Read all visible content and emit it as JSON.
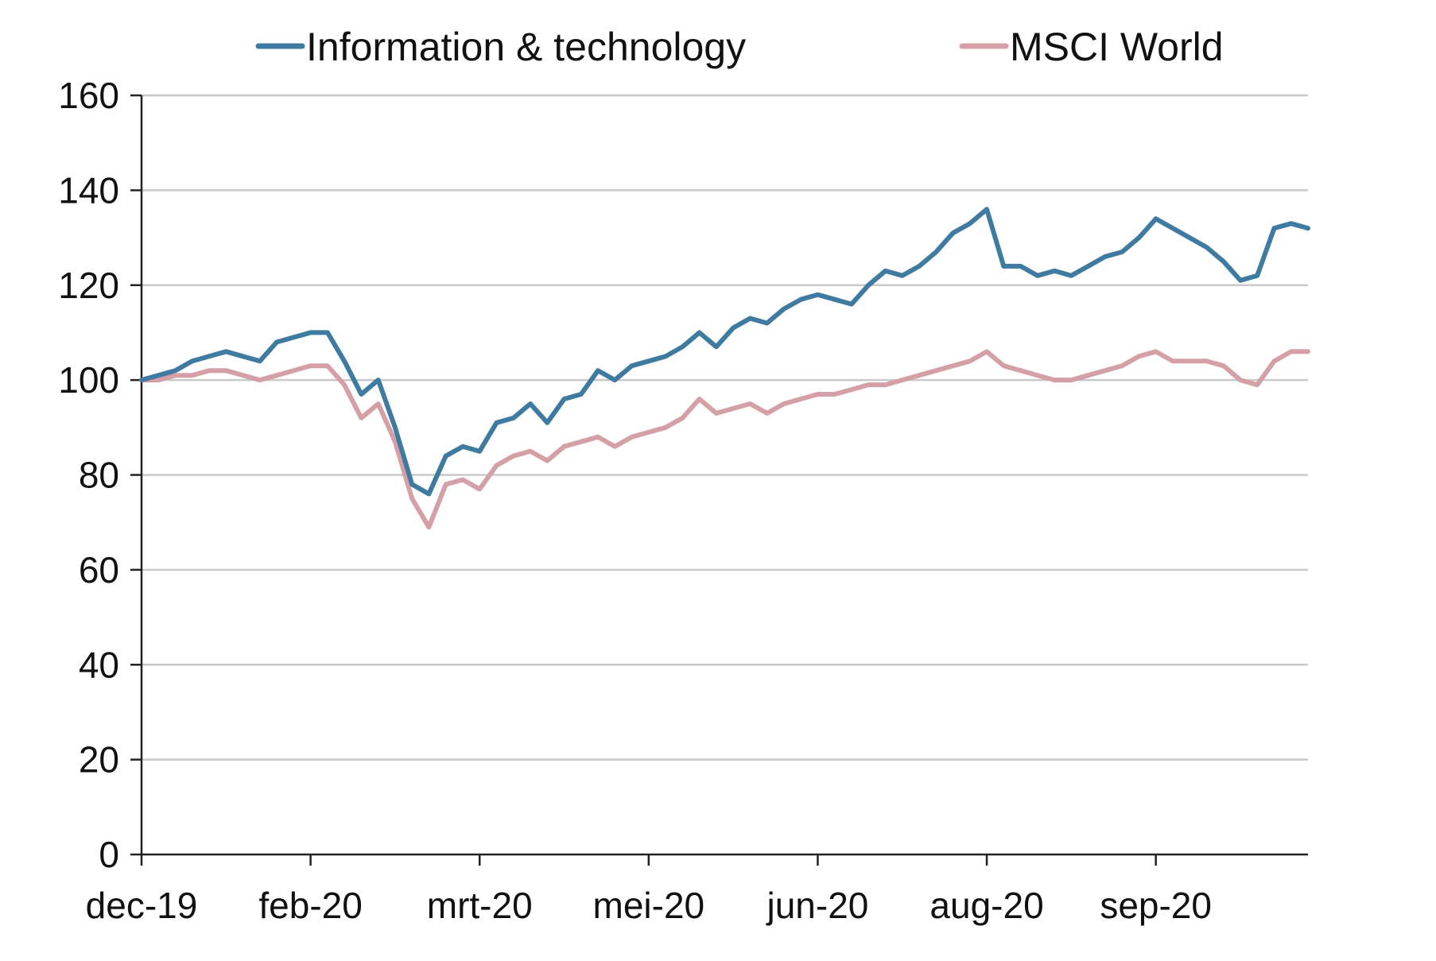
{
  "chart_data": {
    "type": "line",
    "title": "",
    "xlabel": "",
    "ylabel": "",
    "ylim": [
      0,
      160
    ],
    "yticks": [
      0,
      20,
      40,
      60,
      80,
      100,
      120,
      140,
      160
    ],
    "ytick_labels": [
      "0",
      "20",
      "40",
      "60",
      "80",
      "100",
      "120",
      "140",
      "160"
    ],
    "xlim": [
      0,
      69
    ],
    "xticks": [
      {
        "x": 0,
        "label": "dec-19"
      },
      {
        "x": 10,
        "label": "feb-20"
      },
      {
        "x": 20,
        "label": "mrt-20"
      },
      {
        "x": 30,
        "label": "mei-20"
      },
      {
        "x": 40,
        "label": "jun-20"
      },
      {
        "x": 50,
        "label": "aug-20"
      },
      {
        "x": 60,
        "label": "sep-20"
      }
    ],
    "grid": true,
    "legend_position": "top",
    "x": [
      0,
      1,
      2,
      3,
      4,
      5,
      6,
      7,
      8,
      9,
      10,
      11,
      12,
      13,
      14,
      15,
      16,
      17,
      18,
      19,
      20,
      21,
      22,
      23,
      24,
      25,
      26,
      27,
      28,
      29,
      30,
      31,
      32,
      33,
      34,
      35,
      36,
      37,
      38,
      39,
      40,
      41,
      42,
      43,
      44,
      45,
      46,
      47,
      48,
      49,
      50,
      51,
      52,
      53,
      54,
      55,
      56,
      57,
      58,
      59,
      60,
      61,
      62,
      63,
      64,
      65,
      66,
      67,
      68,
      69
    ],
    "series": [
      {
        "name": "Information & technology",
        "color": "#3f7aa0",
        "values": [
          100,
          101,
          102,
          104,
          105,
          106,
          105,
          104,
          108,
          109,
          110,
          110,
          104,
          97,
          100,
          90,
          78,
          76,
          84,
          86,
          85,
          91,
          92,
          95,
          91,
          96,
          97,
          102,
          100,
          103,
          104,
          105,
          107,
          110,
          107,
          111,
          113,
          112,
          115,
          117,
          118,
          117,
          116,
          120,
          123,
          122,
          124,
          127,
          131,
          133,
          136,
          124,
          124,
          122,
          123,
          122,
          124,
          126,
          127,
          130,
          134,
          132,
          130,
          128,
          125,
          121,
          122,
          132,
          133,
          132
        ],
        "values_note": null
      },
      {
        "name": "MSCI World",
        "color": "#d4a0a6",
        "values": [
          100,
          100,
          101,
          101,
          102,
          102,
          101,
          100,
          101,
          102,
          103,
          103,
          99,
          92,
          95,
          87,
          75,
          69,
          78,
          79,
          77,
          82,
          84,
          85,
          83,
          86,
          87,
          88,
          86,
          88,
          89,
          90,
          92,
          96,
          93,
          94,
          95,
          93,
          95,
          96,
          97,
          97,
          98,
          99,
          99,
          100,
          101,
          102,
          103,
          104,
          106,
          103,
          102,
          101,
          100,
          100,
          101,
          102,
          103,
          105,
          106,
          104,
          104,
          104,
          103,
          100,
          99,
          104,
          106,
          106
        ]
      }
    ]
  }
}
